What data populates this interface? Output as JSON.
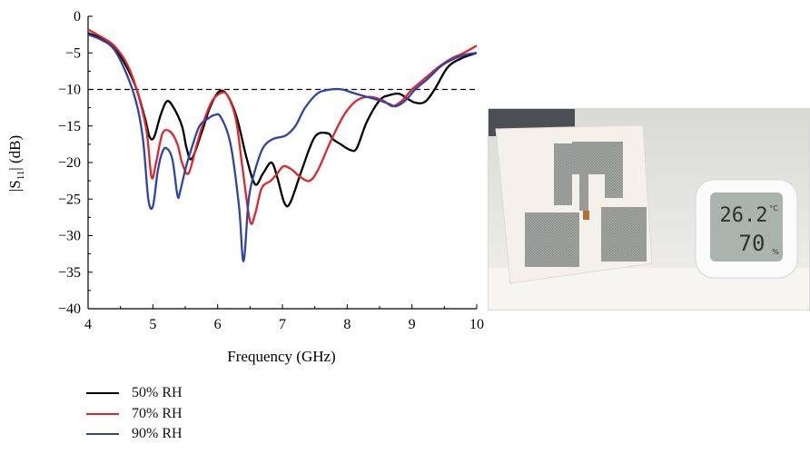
{
  "chart_data": {
    "type": "line",
    "xlabel": "Frequency (GHz)",
    "ylabel_prefix": "|S",
    "ylabel_sub": "11",
    "ylabel_suffix": "| (dB)",
    "xlim": [
      4,
      10
    ],
    "ylim": [
      -40,
      0
    ],
    "xticks": [
      "4",
      "5",
      "6",
      "7",
      "8",
      "9",
      "10"
    ],
    "yticks": [
      "0",
      "−5",
      "−10",
      "−15",
      "−20",
      "−25",
      "−30",
      "−35",
      "−40"
    ],
    "reference_line": {
      "y": -10,
      "style": "dashed"
    },
    "grid": false,
    "legend_position": "bottom-left",
    "series": [
      {
        "name": "50% RH",
        "color": "#000000",
        "x": [
          4.0,
          4.2,
          4.4,
          4.6,
          4.75,
          4.88,
          4.95,
          5.02,
          5.12,
          5.22,
          5.32,
          5.45,
          5.52,
          5.6,
          5.75,
          5.88,
          6.02,
          6.15,
          6.3,
          6.45,
          6.58,
          6.7,
          6.83,
          6.92,
          7.03,
          7.12,
          7.3,
          7.5,
          7.7,
          7.78,
          7.9,
          8.05,
          8.15,
          8.3,
          8.5,
          8.65,
          8.8,
          8.92,
          9.05,
          9.2,
          9.35,
          9.55,
          9.75,
          10.0
        ],
        "y": [
          -2.3,
          -3.0,
          -4.2,
          -7.0,
          -10.0,
          -14.0,
          -16.5,
          -16.5,
          -13.5,
          -11.6,
          -12.5,
          -15.0,
          -18.0,
          -19.5,
          -16.0,
          -12.5,
          -10.3,
          -10.8,
          -14.0,
          -19.5,
          -23.0,
          -21.5,
          -20.0,
          -22.0,
          -25.5,
          -25.5,
          -21.0,
          -16.5,
          -16.0,
          -16.8,
          -17.5,
          -18.3,
          -18.0,
          -14.5,
          -11.5,
          -10.8,
          -10.6,
          -11.2,
          -11.8,
          -11.7,
          -10.0,
          -7.0,
          -5.8,
          -5.0
        ]
      },
      {
        "name": "70% RH",
        "color": "#e0262a",
        "x": [
          4.0,
          4.2,
          4.4,
          4.6,
          4.75,
          4.9,
          4.98,
          5.05,
          5.15,
          5.27,
          5.38,
          5.45,
          5.55,
          5.68,
          5.8,
          5.92,
          6.05,
          6.15,
          6.28,
          6.38,
          6.5,
          6.58,
          6.68,
          6.82,
          6.92,
          7.02,
          7.15,
          7.28,
          7.42,
          7.55,
          7.75,
          7.95,
          8.15,
          8.35,
          8.55,
          8.7,
          8.85,
          9.0,
          9.2,
          9.4,
          9.6,
          9.8,
          10.0
        ],
        "y": [
          -1.8,
          -2.8,
          -4.0,
          -6.5,
          -10.0,
          -15.5,
          -22.0,
          -20.0,
          -16.0,
          -15.8,
          -17.5,
          -20.0,
          -21.5,
          -17.5,
          -14.0,
          -11.5,
          -10.5,
          -10.8,
          -14.0,
          -20.5,
          -28.0,
          -27.0,
          -23.5,
          -22.5,
          -21.5,
          -20.5,
          -21.0,
          -22.0,
          -22.5,
          -21.0,
          -17.0,
          -13.5,
          -11.5,
          -11.0,
          -11.5,
          -12.3,
          -11.5,
          -10.0,
          -8.5,
          -7.0,
          -5.8,
          -5.0,
          -4.0
        ]
      },
      {
        "name": "90% RH",
        "color": "#2f44a7",
        "x": [
          4.0,
          4.2,
          4.4,
          4.6,
          4.75,
          4.85,
          4.93,
          5.0,
          5.07,
          5.13,
          5.2,
          5.3,
          5.38,
          5.42,
          5.5,
          5.6,
          5.72,
          5.85,
          5.95,
          6.05,
          6.2,
          6.33,
          6.4,
          6.48,
          6.58,
          6.7,
          6.85,
          7.05,
          7.2,
          7.35,
          7.55,
          7.75,
          7.92,
          8.1,
          8.3,
          8.5,
          8.65,
          8.75,
          8.9,
          9.05,
          9.25,
          9.45,
          9.65,
          9.85,
          10.0
        ],
        "y": [
          -2.5,
          -3.2,
          -4.5,
          -8.0,
          -12.0,
          -17.0,
          -25.0,
          -26.0,
          -21.5,
          -19.0,
          -18.0,
          -19.5,
          -24.5,
          -24.0,
          -21.0,
          -18.0,
          -15.0,
          -14.0,
          -13.5,
          -13.8,
          -17.5,
          -26.0,
          -33.5,
          -25.0,
          -21.0,
          -18.0,
          -16.8,
          -16.3,
          -15.0,
          -12.5,
          -10.5,
          -10.0,
          -10.0,
          -10.5,
          -11.0,
          -11.5,
          -12.0,
          -12.3,
          -11.5,
          -10.0,
          -8.5,
          -6.8,
          -5.8,
          -5.2,
          -5.0
        ]
      }
    ]
  },
  "photo": {
    "thermometer_temperature": "26.2",
    "thermometer_temperature_unit": "°C",
    "thermometer_humidity": "70",
    "thermometer_humidity_unit": "%"
  }
}
